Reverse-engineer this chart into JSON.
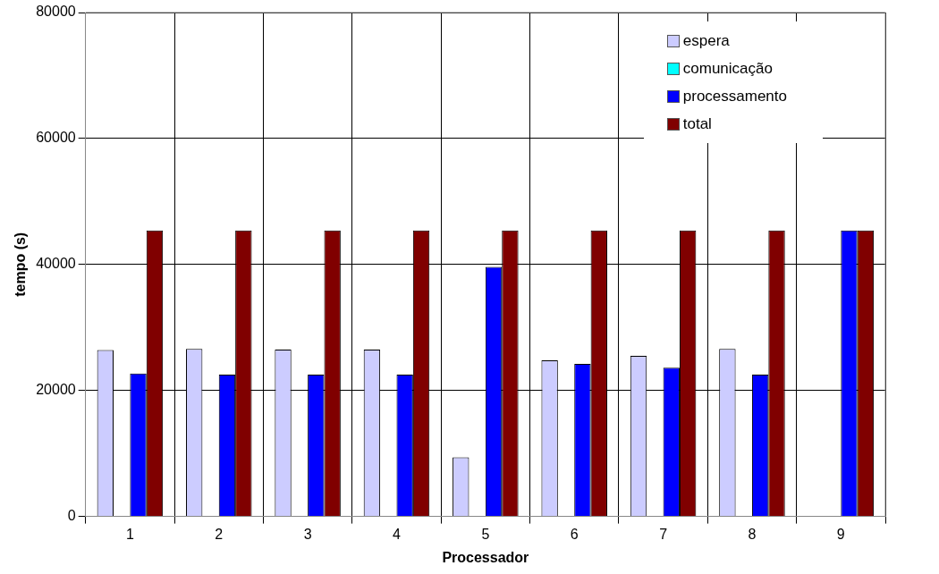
{
  "chart_data": {
    "type": "bar",
    "xlabel": "Processador",
    "ylabel": "tempo (s)",
    "categories": [
      "1",
      "2",
      "3",
      "4",
      "5",
      "6",
      "7",
      "8",
      "9"
    ],
    "series": [
      {
        "name": "espera",
        "color": "#ccccff",
        "values": [
          26400,
          26600,
          26500,
          26500,
          9400,
          24800,
          25500,
          26600,
          0
        ]
      },
      {
        "name": "comunicação",
        "color": "#00ffff",
        "values": [
          0,
          0,
          0,
          0,
          0,
          0,
          0,
          0,
          0
        ]
      },
      {
        "name": "processamento",
        "color": "#0000ff",
        "values": [
          22700,
          22500,
          22500,
          22500,
          39600,
          24200,
          23600,
          22500,
          45400
        ]
      },
      {
        "name": "total",
        "color": "#800000",
        "values": [
          45400,
          45400,
          45400,
          45400,
          45400,
          45400,
          45400,
          45400,
          45400
        ]
      }
    ],
    "ylim": [
      0,
      80000
    ],
    "yticks": [
      0,
      20000,
      40000,
      60000,
      80000
    ],
    "grid": true,
    "legend": "top right"
  }
}
